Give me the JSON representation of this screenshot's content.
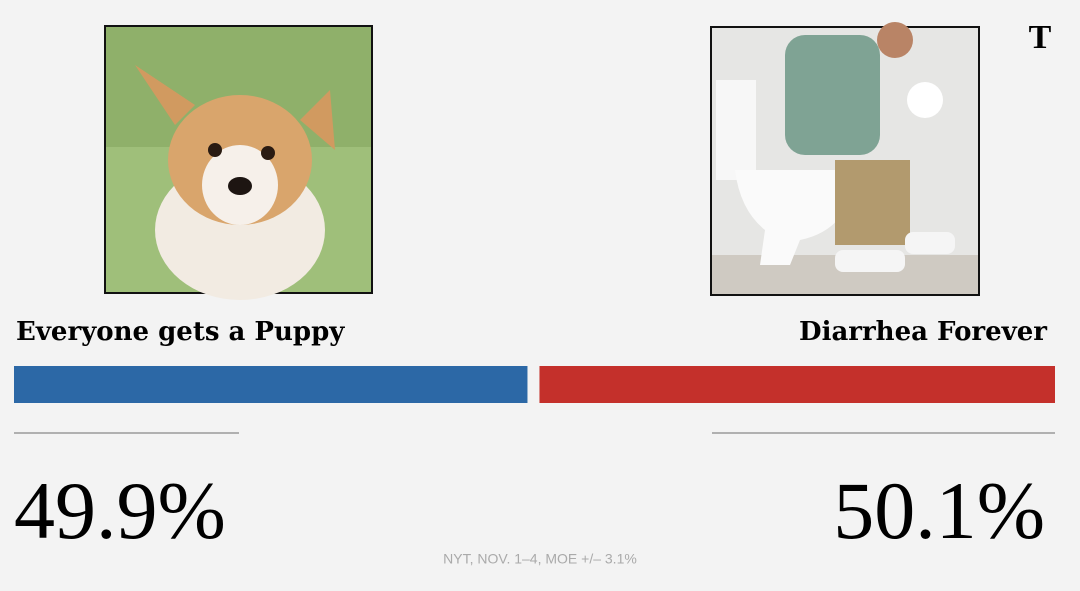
{
  "chart_data": {
    "type": "split-bar",
    "logo": "T",
    "series": [
      {
        "name": "Everyone gets a Puppy",
        "color": "#2c68a6",
        "values": [
          49.9
        ],
        "value_labels": [
          "49.9%"
        ]
      },
      {
        "name": "Diarrhea Forever",
        "color": "#c4302b",
        "values": [
          50.1
        ],
        "value_labels": [
          "50.1%"
        ]
      }
    ],
    "source": "NYT,  NOV. 1–4, MOE +/– 3.1%"
  }
}
